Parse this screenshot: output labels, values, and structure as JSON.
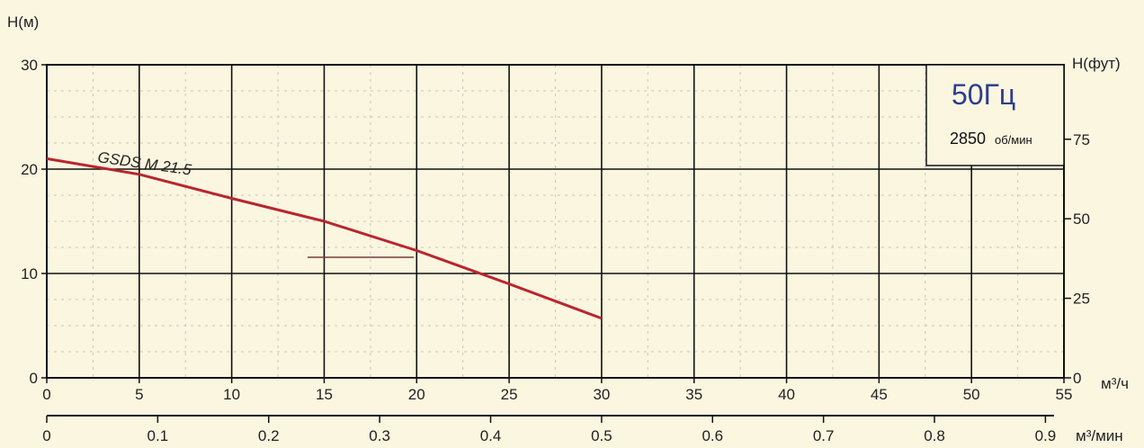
{
  "chart_data": {
    "type": "line",
    "left_axis": {
      "label": "H(м)",
      "range": [
        0,
        30
      ],
      "ticks": [
        0,
        10,
        20,
        30
      ]
    },
    "right_axis": {
      "label": "H(фут)",
      "range": [
        0,
        98.4
      ],
      "ticks": [
        0,
        25,
        50,
        75
      ]
    },
    "x_axis_m3h": {
      "label": "м³/ч",
      "range": [
        0,
        55
      ],
      "ticks": [
        0,
        5,
        10,
        15,
        20,
        25,
        30,
        35,
        40,
        45,
        50,
        55
      ]
    },
    "x_axis_m3min": {
      "label": "м³/мин",
      "range": [
        0,
        0.9167
      ],
      "ticks": [
        "0",
        "0.1",
        "0.2",
        "0.3",
        "0.4",
        "0.5",
        "0.6",
        "0.7",
        "0.8",
        "0.9"
      ]
    },
    "series": [
      {
        "name": "GSDS M 21.5",
        "color": "#b8262e",
        "points": [
          {
            "x": 0,
            "y": 21.0
          },
          {
            "x": 5,
            "y": 19.5
          },
          {
            "x": 10,
            "y": 17.2
          },
          {
            "x": 15,
            "y": 15.0
          },
          {
            "x": 20,
            "y": 12.2
          },
          {
            "x": 25,
            "y": 9.0
          },
          {
            "x": 30,
            "y": 5.7
          }
        ]
      }
    ],
    "grid": true
  },
  "info_box": {
    "frequency": "50Гц",
    "speed_value": "2850",
    "speed_unit": "об/мин"
  }
}
